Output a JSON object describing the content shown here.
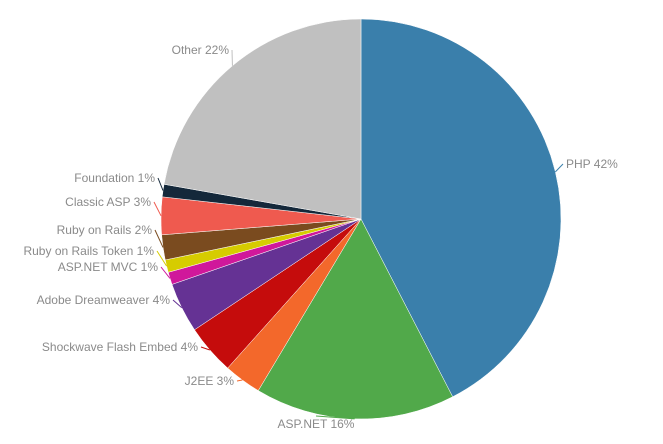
{
  "chart_data": {
    "type": "pie",
    "start_angle_deg": 0,
    "direction": "clockwise",
    "slices": [
      {
        "label": "PHP 42%",
        "value": 42,
        "color": "#3a7fab"
      },
      {
        "label": "ASP.NET 16%",
        "value": 16,
        "color": "#51a94a"
      },
      {
        "label": "J2EE 3%",
        "value": 3,
        "color": "#f3682b"
      },
      {
        "label": "Shockwave Flash Embed 4%",
        "value": 4,
        "color": "#c50c0c"
      },
      {
        "label": "Adobe Dreamweaver 4%",
        "value": 4,
        "color": "#653294"
      },
      {
        "label": "ASP.NET MVC 1%",
        "value": 1,
        "color": "#d0189b"
      },
      {
        "label": "Ruby on Rails Token 1%",
        "value": 1,
        "color": "#d6cc00"
      },
      {
        "label": "Ruby on Rails 2%",
        "value": 2,
        "color": "#7a4b1f"
      },
      {
        "label": "Classic ASP 3%",
        "value": 3,
        "color": "#ef5a4f"
      },
      {
        "label": "Foundation 1%",
        "value": 1,
        "color": "#14283a"
      },
      {
        "label": "Other 22%",
        "value": 22,
        "color": "#c0c0c0"
      }
    ]
  }
}
